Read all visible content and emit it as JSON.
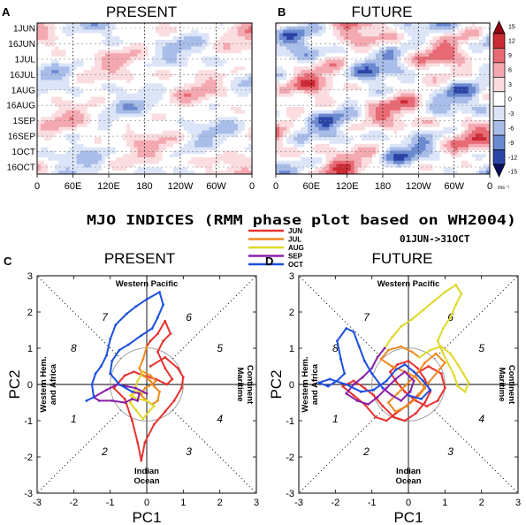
{
  "colors": {
    "palette": [
      "#08105c",
      "#2a44a8",
      "#6b89cf",
      "#a9bde9",
      "#dce5f8",
      "#ffffff",
      "#fbdde0",
      "#f4a9b1",
      "#e86a74",
      "#cc2a34",
      "#8e0812"
    ],
    "months": {
      "JUN": "#e8332f",
      "JUL": "#ee8a22",
      "AUG": "#dfd82a",
      "SEP": "#8a1fa8",
      "OCT": "#1c4fe0"
    }
  },
  "panel_a": {
    "letter": "A",
    "title": "PRESENT",
    "y_ticks": [
      "1JUN",
      "16JUN",
      "1JUL",
      "16JUL",
      "1AUG",
      "16AUG",
      "1SEP",
      "16SEP",
      "1OCT",
      "16OCT"
    ],
    "x_ticks": [
      "0",
      "60E",
      "120E",
      "180",
      "120W",
      "60W",
      "0"
    ]
  },
  "panel_b": {
    "letter": "B",
    "title": "FUTURE",
    "x_ticks": [
      "0",
      "60E",
      "120E",
      "180",
      "120W",
      "60W",
      "0"
    ]
  },
  "colorbar": {
    "labels": [
      "15",
      "12",
      "9",
      "6",
      "3",
      "0",
      "-3",
      "-6",
      "-9",
      "-12",
      "-15"
    ],
    "unit": "ms⁻¹"
  },
  "mjo_title": "MJO INDICES (RMM phase plot based on WH2004)",
  "mjo_dates": "01JUN->31OCT",
  "legend": [
    "JUN",
    "JUL",
    "AUG",
    "SEP",
    "OCT"
  ],
  "panel_c": {
    "letter": "C",
    "title": "PRESENT"
  },
  "panel_d": {
    "letter": "D",
    "title": "FUTURE"
  },
  "phase_diagram": {
    "xlabel": "PC1",
    "ylabel": "PC2",
    "ticks": [
      "-3",
      "-2",
      "-1",
      "0",
      "1",
      "2",
      "3"
    ],
    "region_top": "Western Pacific",
    "region_bottom": [
      "Indian",
      "Ocean"
    ],
    "region_left": [
      "Western Hem.",
      "and Africa"
    ],
    "region_right": [
      "Maritime",
      "Continent"
    ],
    "phase_numbers": [
      "1",
      "2",
      "3",
      "4",
      "5",
      "6",
      "7",
      "8"
    ]
  },
  "chart_data": [
    {
      "type": "heatmap",
      "title": "PRESENT",
      "x_ticks": [
        "0",
        "60E",
        "120E",
        "180",
        "120W",
        "60W",
        "0"
      ],
      "y_ticks": [
        "1JUN",
        "16JUN",
        "1JUL",
        "16JUL",
        "1AUG",
        "16AUG",
        "1SEP",
        "16SEP",
        "1OCT",
        "16OCT"
      ],
      "colorbar_range": [
        -15,
        15
      ],
      "unit": "ms⁻¹",
      "amplitude": 7
    },
    {
      "type": "heatmap",
      "title": "FUTURE",
      "x_ticks": [
        "0",
        "60E",
        "120E",
        "180",
        "120W",
        "60W",
        "0"
      ],
      "y_ticks": [
        "1JUN",
        "16JUN",
        "1JUL",
        "16JUL",
        "1AUG",
        "16AUG",
        "1SEP",
        "16SEP",
        "1OCT",
        "16OCT"
      ],
      "colorbar_range": [
        -15,
        15
      ],
      "unit": "ms⁻¹",
      "amplitude": 11
    },
    {
      "type": "line",
      "title": "PRESENT",
      "xlabel": "PC1",
      "ylabel": "PC2",
      "xlim": [
        -3,
        3
      ],
      "ylim": [
        -3,
        3
      ],
      "series": [
        {
          "name": "JUN",
          "points": [
            [
              0.1,
              0.5
            ],
            [
              0.5,
              0.75
            ],
            [
              0.85,
              0.45
            ],
            [
              1.0,
              0.2
            ],
            [
              0.95,
              -0.1
            ],
            [
              0.75,
              -0.45
            ],
            [
              0.5,
              -0.75
            ],
            [
              0.2,
              -1.1
            ],
            [
              -0.05,
              -1.6
            ],
            [
              -0.15,
              -2.1
            ],
            [
              -0.25,
              -1.6
            ],
            [
              -0.4,
              -1.0
            ],
            [
              -0.6,
              -0.4
            ],
            [
              -0.9,
              -0.1
            ],
            [
              -0.6,
              0.25
            ],
            [
              -0.35,
              0.35
            ],
            [
              -0.1,
              0.25
            ],
            [
              0.25,
              0.15
            ],
            [
              0.55,
              0.0
            ],
            [
              0.7,
              0.15
            ],
            [
              0.5,
              0.45
            ],
            [
              0.3,
              0.9
            ],
            [
              0.45,
              1.2
            ],
            [
              0.65,
              1.4
            ],
            [
              0.5,
              1.75
            ],
            [
              0.3,
              1.4
            ],
            [
              0.1,
              1.2
            ],
            [
              0.0,
              1.05
            ]
          ]
        },
        {
          "name": "JUL",
          "points": [
            [
              0.0,
              1.05
            ],
            [
              -0.1,
              0.7
            ],
            [
              -0.2,
              0.45
            ],
            [
              -0.1,
              0.25
            ],
            [
              0.1,
              0.1
            ],
            [
              0.2,
              -0.05
            ],
            [
              0.35,
              -0.2
            ],
            [
              0.3,
              -0.45
            ],
            [
              0.15,
              -0.55
            ],
            [
              0.0,
              -0.45
            ],
            [
              -0.15,
              -0.3
            ],
            [
              -0.05,
              -0.1
            ],
            [
              0.15,
              0.0
            ],
            [
              0.25,
              0.1
            ],
            [
              0.1,
              0.25
            ],
            [
              -0.1,
              0.35
            ]
          ]
        },
        {
          "name": "AUG",
          "points": [
            [
              -0.1,
              0.35
            ],
            [
              -0.25,
              0.1
            ],
            [
              -0.35,
              -0.2
            ],
            [
              -0.45,
              -0.5
            ],
            [
              -0.3,
              -0.7
            ],
            [
              -0.1,
              -0.95
            ],
            [
              0.05,
              -0.75
            ],
            [
              0.2,
              -0.6
            ],
            [
              0.0,
              -0.45
            ],
            [
              -0.25,
              -0.4
            ],
            [
              -0.45,
              -0.3
            ],
            [
              -0.25,
              -0.2
            ],
            [
              0.0,
              -0.25
            ]
          ]
        },
        {
          "name": "SEP",
          "points": [
            [
              0.0,
              -0.25
            ],
            [
              -0.3,
              -0.1
            ],
            [
              -0.55,
              -0.05
            ],
            [
              -0.8,
              0.0
            ],
            [
              -1.1,
              -0.15
            ],
            [
              -1.45,
              -0.35
            ],
            [
              -1.3,
              -0.45
            ],
            [
              -0.95,
              -0.45
            ],
            [
              -0.6,
              -0.5
            ],
            [
              -0.4,
              -0.4
            ],
            [
              -0.25,
              -0.45
            ],
            [
              -0.2,
              -0.25
            ],
            [
              -0.4,
              -0.2
            ]
          ]
        },
        {
          "name": "OCT",
          "points": [
            [
              -0.4,
              -0.2
            ],
            [
              -0.75,
              0.0
            ],
            [
              -1.0,
              0.3
            ],
            [
              -0.95,
              0.65
            ],
            [
              -0.75,
              0.95
            ],
            [
              -0.5,
              1.1
            ],
            [
              -0.15,
              1.35
            ],
            [
              0.15,
              1.55
            ],
            [
              0.3,
              1.85
            ],
            [
              0.45,
              2.2
            ],
            [
              0.35,
              2.55
            ],
            [
              0.0,
              2.35
            ],
            [
              -0.3,
              2.15
            ],
            [
              -0.55,
              1.95
            ],
            [
              -0.85,
              1.65
            ],
            [
              -1.0,
              1.25
            ],
            [
              -1.1,
              0.8
            ],
            [
              -1.25,
              0.5
            ],
            [
              -1.4,
              0.3
            ],
            [
              -1.5,
              0.0
            ],
            [
              -1.45,
              -0.35
            ],
            [
              -1.65,
              -0.45
            ]
          ]
        }
      ]
    },
    {
      "type": "line",
      "title": "FUTURE",
      "xlabel": "PC1",
      "ylabel": "PC2",
      "xlim": [
        -3,
        3
      ],
      "ylim": [
        -3,
        3
      ],
      "series": [
        {
          "name": "JUN",
          "points": [
            [
              0.2,
              0.3
            ],
            [
              0.55,
              0.5
            ],
            [
              0.9,
              0.3
            ],
            [
              1.0,
              -0.1
            ],
            [
              0.8,
              -0.45
            ],
            [
              0.5,
              -0.6
            ],
            [
              0.2,
              -0.45
            ],
            [
              -0.1,
              -0.2
            ],
            [
              -0.35,
              0.1
            ],
            [
              -0.5,
              0.35
            ],
            [
              -0.3,
              0.55
            ],
            [
              0.0,
              0.65
            ],
            [
              0.25,
              0.45
            ],
            [
              0.45,
              0.15
            ],
            [
              0.6,
              -0.2
            ],
            [
              0.45,
              -0.5
            ],
            [
              0.2,
              -0.8
            ],
            [
              -0.1,
              -1.0
            ],
            [
              -0.4,
              -0.9
            ],
            [
              -0.7,
              -0.6
            ],
            [
              -0.95,
              -0.3
            ],
            [
              -1.2,
              -0.1
            ],
            [
              -1.5,
              0.1
            ],
            [
              -1.8,
              -0.05
            ],
            [
              -1.5,
              -0.3
            ],
            [
              -1.2,
              -0.55
            ],
            [
              -0.9,
              -0.9
            ],
            [
              -0.6,
              -1.0
            ],
            [
              -0.35,
              -0.8
            ],
            [
              0.0,
              -0.55
            ],
            [
              0.3,
              -0.25
            ]
          ]
        },
        {
          "name": "JUL",
          "points": [
            [
              0.3,
              -0.25
            ],
            [
              0.55,
              0.05
            ],
            [
              0.8,
              0.35
            ],
            [
              1.0,
              0.6
            ],
            [
              0.75,
              0.85
            ],
            [
              0.45,
              0.6
            ],
            [
              0.2,
              0.25
            ],
            [
              -0.05,
              0.0
            ],
            [
              -0.3,
              -0.25
            ],
            [
              -0.55,
              -0.5
            ],
            [
              -0.35,
              -0.75
            ],
            [
              -0.05,
              -0.6
            ],
            [
              0.25,
              -0.35
            ],
            [
              0.45,
              -0.1
            ],
            [
              0.2,
              0.2
            ],
            [
              -0.1,
              0.35
            ],
            [
              -0.45,
              0.5
            ],
            [
              -0.75,
              0.7
            ],
            [
              -0.55,
              0.95
            ],
            [
              -0.2,
              1.05
            ],
            [
              0.1,
              0.9
            ],
            [
              0.3,
              0.75
            ]
          ]
        },
        {
          "name": "AUG",
          "points": [
            [
              0.3,
              0.75
            ],
            [
              0.6,
              0.95
            ],
            [
              0.9,
              1.05
            ],
            [
              1.15,
              0.85
            ],
            [
              1.35,
              0.55
            ],
            [
              1.5,
              0.3
            ],
            [
              1.65,
              0.05
            ],
            [
              1.55,
              -0.2
            ],
            [
              1.35,
              -0.05
            ],
            [
              1.25,
              0.25
            ],
            [
              1.1,
              0.55
            ],
            [
              0.95,
              0.85
            ],
            [
              0.8,
              1.2
            ],
            [
              0.95,
              1.55
            ],
            [
              1.15,
              1.85
            ],
            [
              1.3,
              2.2
            ],
            [
              1.45,
              2.5
            ],
            [
              1.3,
              2.75
            ],
            [
              1.0,
              2.55
            ],
            [
              0.7,
              2.3
            ],
            [
              0.4,
              2.05
            ],
            [
              0.1,
              1.8
            ],
            [
              -0.2,
              1.6
            ],
            [
              -0.45,
              1.3
            ],
            [
              -0.65,
              1.0
            ]
          ]
        },
        {
          "name": "SEP",
          "points": [
            [
              -0.65,
              1.0
            ],
            [
              -0.85,
              0.75
            ],
            [
              -1.0,
              0.45
            ],
            [
              -1.25,
              0.2
            ],
            [
              -1.5,
              0.0
            ],
            [
              -1.7,
              -0.25
            ],
            [
              -1.4,
              -0.45
            ],
            [
              -1.1,
              -0.55
            ],
            [
              -0.85,
              -0.35
            ],
            [
              -0.6,
              -0.1
            ],
            [
              -0.35,
              0.15
            ],
            [
              -0.1,
              0.35
            ],
            [
              0.15,
              0.1
            ],
            [
              0.05,
              -0.2
            ],
            [
              -0.2,
              -0.45
            ],
            [
              -0.45,
              -0.3
            ],
            [
              -0.7,
              -0.1
            ]
          ]
        },
        {
          "name": "OCT",
          "points": [
            [
              -0.7,
              -0.1
            ],
            [
              -1.0,
              0.3
            ],
            [
              -1.2,
              0.65
            ],
            [
              -1.35,
              1.05
            ],
            [
              -1.5,
              1.45
            ],
            [
              -1.7,
              1.55
            ],
            [
              -1.95,
              1.2
            ],
            [
              -1.85,
              0.7
            ],
            [
              -1.75,
              0.3
            ],
            [
              -1.95,
              0.1
            ],
            [
              -2.2,
              -0.05
            ],
            [
              -2.45,
              0.05
            ],
            [
              -2.15,
              0.15
            ],
            [
              -1.7,
              0.0
            ],
            [
              -1.3,
              -0.2
            ],
            [
              -0.95,
              -0.15
            ],
            [
              -0.6,
              0.1
            ],
            [
              -0.35,
              0.4
            ],
            [
              -0.1,
              0.55
            ],
            [
              0.15,
              0.35
            ],
            [
              0.4,
              0.1
            ],
            [
              0.6,
              -0.15
            ],
            [
              0.35,
              -0.4
            ],
            [
              0.0,
              -0.3
            ]
          ]
        }
      ]
    }
  ]
}
